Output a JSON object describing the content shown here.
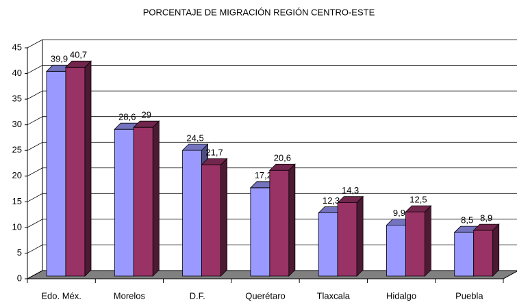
{
  "chart_data": {
    "type": "bar3d",
    "title": "PORCENTAJE DE MIGRACIÓN REGIÓN CENTRO-ESTE",
    "categories": [
      "Edo. Méx.",
      "Morelos",
      "D.F.",
      "Querétaro",
      "Tlaxcala",
      "Hidalgo",
      "Puebla"
    ],
    "series": [
      {
        "color": "#9999ff",
        "values": [
          39.9,
          28.6,
          24.5,
          17.2,
          12.3,
          9.9,
          8.5
        ],
        "value_labels": [
          "39,9",
          "28,6",
          "24,5",
          "17,2",
          "12,3",
          "9,9",
          "8,5"
        ]
      },
      {
        "color": "#993366",
        "values": [
          40.7,
          29,
          21.7,
          20.6,
          14.3,
          12.5,
          8.9
        ],
        "value_labels": [
          "40,7",
          "29",
          "21,7",
          "20,6",
          "14,3",
          "12,5",
          "8,9"
        ]
      }
    ],
    "ylim": [
      0,
      45
    ],
    "yticks": [
      0,
      5,
      10,
      15,
      20,
      25,
      30,
      35,
      40,
      45
    ],
    "grid": true
  }
}
